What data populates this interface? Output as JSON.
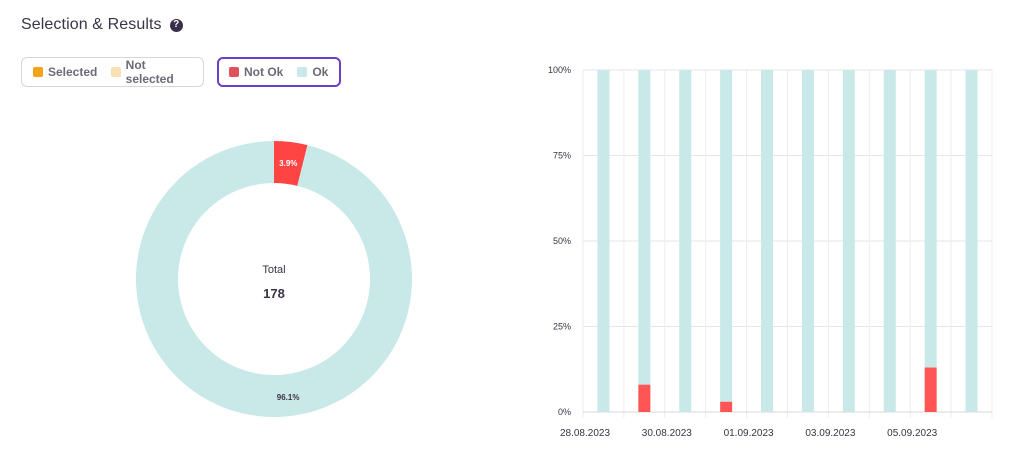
{
  "header": {
    "title": "Selection & Results",
    "help_icon": "question-circle-icon",
    "help_glyph": "?"
  },
  "legend_selection": {
    "items": [
      {
        "label": "Selected",
        "color": "#f7a21b"
      },
      {
        "label": "Not selected",
        "color": "#f8dfb6"
      }
    ]
  },
  "legend_results": {
    "items": [
      {
        "label": "Not Ok",
        "color": "#e0525c"
      },
      {
        "label": "Ok",
        "color": "#c9e8e8"
      }
    ]
  },
  "chart_data": [
    {
      "type": "pie",
      "style": "donut",
      "center_label": "Total",
      "center_value": "178",
      "slices": [
        {
          "name": "Not Ok",
          "value": 3.9,
          "label": "3.9%",
          "color": "#ff4444"
        },
        {
          "name": "Ok",
          "value": 96.1,
          "label": "96.1%",
          "color": "#c9e8e8"
        }
      ]
    },
    {
      "type": "bar",
      "stacked": true,
      "percent": true,
      "x_labels": [
        "28.08.2023",
        "30.08.2023",
        "01.09.2023",
        "03.09.2023",
        "05.09.2023"
      ],
      "y_ticks": [
        "0%",
        "25%",
        "50%",
        "75%",
        "100%"
      ],
      "ylim": [
        0,
        100
      ],
      "grid": true,
      "bars": [
        {
          "not_ok": 0,
          "ok": 100
        },
        {
          "not_ok": 8,
          "ok": 92
        },
        {
          "not_ok": 0,
          "ok": 100
        },
        {
          "not_ok": 3,
          "ok": 97
        },
        {
          "not_ok": 0,
          "ok": 100
        },
        {
          "not_ok": 0,
          "ok": 100
        },
        {
          "not_ok": 0,
          "ok": 100
        },
        {
          "not_ok": 0,
          "ok": 100
        },
        {
          "not_ok": 13,
          "ok": 87
        },
        {
          "not_ok": 0,
          "ok": 100
        }
      ],
      "colors": {
        "not_ok": "#ff5555",
        "ok": "#c9e8e8"
      }
    }
  ]
}
